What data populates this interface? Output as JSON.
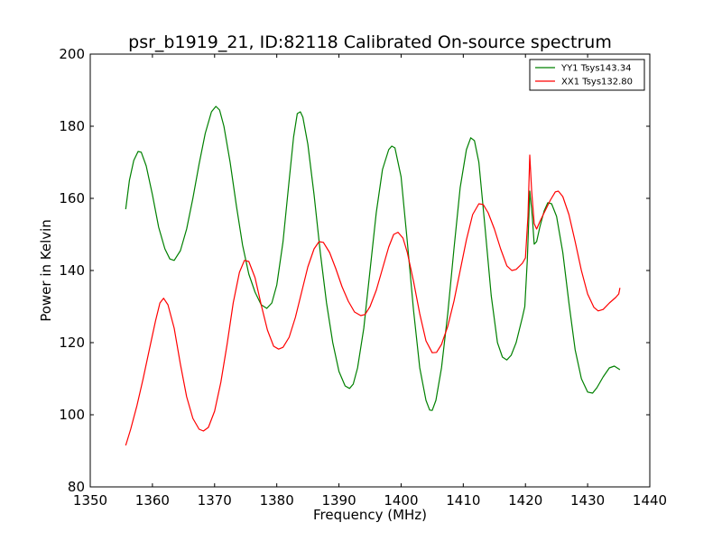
{
  "chart_data": {
    "type": "line",
    "title": "psr_b1919_21, ID:82118 Calibrated On-source spectrum",
    "xlabel": "Frequency (MHz)",
    "ylabel": "Power in Kelvin",
    "xlim": [
      1350,
      1440
    ],
    "ylim": [
      80,
      200
    ],
    "xticks": [
      1350,
      1360,
      1370,
      1380,
      1390,
      1400,
      1410,
      1420,
      1430,
      1440
    ],
    "yticks": [
      80,
      100,
      120,
      140,
      160,
      180,
      200
    ],
    "grid": false,
    "legend_position": "top-right",
    "series": [
      {
        "name": "YY1 Tsys143.34",
        "color": "#008000",
        "points": [
          [
            1355.7,
            157
          ],
          [
            1356.3,
            165
          ],
          [
            1357,
            170.5
          ],
          [
            1357.7,
            173
          ],
          [
            1358.2,
            172.8
          ],
          [
            1359,
            169
          ],
          [
            1360,
            161
          ],
          [
            1361,
            152
          ],
          [
            1362,
            146
          ],
          [
            1362.8,
            143.2
          ],
          [
            1363.5,
            142.8
          ],
          [
            1364.5,
            145.5
          ],
          [
            1365.5,
            151.5
          ],
          [
            1366.5,
            160
          ],
          [
            1367.5,
            169.5
          ],
          [
            1368.5,
            178
          ],
          [
            1369.5,
            184
          ],
          [
            1370.2,
            185.5
          ],
          [
            1370.8,
            184.5
          ],
          [
            1371.5,
            180
          ],
          [
            1372.5,
            170
          ],
          [
            1373.5,
            158
          ],
          [
            1374.5,
            147
          ],
          [
            1375.5,
            139
          ],
          [
            1376.5,
            134
          ],
          [
            1377.5,
            130.5
          ],
          [
            1378.4,
            129.5
          ],
          [
            1379.2,
            131
          ],
          [
            1380,
            136
          ],
          [
            1381,
            148
          ],
          [
            1382,
            165
          ],
          [
            1382.7,
            177
          ],
          [
            1383.3,
            183.5
          ],
          [
            1383.8,
            184
          ],
          [
            1384.2,
            182.5
          ],
          [
            1385,
            175
          ],
          [
            1386,
            161
          ],
          [
            1387,
            145
          ],
          [
            1388,
            131
          ],
          [
            1389,
            120
          ],
          [
            1390,
            112
          ],
          [
            1391,
            108
          ],
          [
            1391.7,
            107.3
          ],
          [
            1392.3,
            108.5
          ],
          [
            1393,
            113
          ],
          [
            1394,
            124
          ],
          [
            1395,
            140
          ],
          [
            1396,
            156
          ],
          [
            1397,
            168
          ],
          [
            1398,
            173.5
          ],
          [
            1398.5,
            174.5
          ],
          [
            1399,
            174
          ],
          [
            1400,
            166
          ],
          [
            1401,
            148
          ],
          [
            1402,
            129
          ],
          [
            1403,
            113
          ],
          [
            1404,
            104
          ],
          [
            1404.6,
            101.3
          ],
          [
            1405,
            101.2
          ],
          [
            1405.6,
            104
          ],
          [
            1406.5,
            113
          ],
          [
            1407.5,
            128
          ],
          [
            1408.5,
            146
          ],
          [
            1409.5,
            163
          ],
          [
            1410.5,
            173.5
          ],
          [
            1411.2,
            176.8
          ],
          [
            1411.8,
            176
          ],
          [
            1412.5,
            170
          ],
          [
            1413.5,
            152
          ],
          [
            1414.5,
            133
          ],
          [
            1415.5,
            120
          ],
          [
            1416.3,
            116
          ],
          [
            1417,
            115.2
          ],
          [
            1417.7,
            116.5
          ],
          [
            1418.5,
            120
          ],
          [
            1419.5,
            127
          ],
          [
            1419.9,
            130
          ],
          [
            1420.3,
            143
          ],
          [
            1420.7,
            162
          ],
          [
            1421.1,
            155
          ],
          [
            1421.4,
            147.3
          ],
          [
            1421.8,
            148
          ],
          [
            1422.3,
            152
          ],
          [
            1423,
            156.5
          ],
          [
            1423.6,
            158.8
          ],
          [
            1424.2,
            158.5
          ],
          [
            1425,
            155
          ],
          [
            1426,
            145
          ],
          [
            1427,
            131
          ],
          [
            1428,
            118
          ],
          [
            1429,
            110
          ],
          [
            1430,
            106.3
          ],
          [
            1430.8,
            106
          ],
          [
            1431.5,
            107.5
          ],
          [
            1432.5,
            110.5
          ],
          [
            1433.5,
            113
          ],
          [
            1434.3,
            113.5
          ],
          [
            1435.2,
            112.5
          ]
        ]
      },
      {
        "name": "XX1 Tsys132.80",
        "color": "#ff0000",
        "points": [
          [
            1355.7,
            91.5
          ],
          [
            1356.5,
            96
          ],
          [
            1357.5,
            102.5
          ],
          [
            1358.5,
            110
          ],
          [
            1359.5,
            118
          ],
          [
            1360.5,
            126
          ],
          [
            1361.2,
            131
          ],
          [
            1361.8,
            132.3
          ],
          [
            1362.5,
            130.5
          ],
          [
            1363.5,
            124
          ],
          [
            1364.5,
            114
          ],
          [
            1365.5,
            105
          ],
          [
            1366.5,
            99
          ],
          [
            1367.5,
            96
          ],
          [
            1368.2,
            95.5
          ],
          [
            1369,
            96.5
          ],
          [
            1370,
            101
          ],
          [
            1371,
            109
          ],
          [
            1372,
            119.5
          ],
          [
            1373,
            131
          ],
          [
            1374,
            139.5
          ],
          [
            1374.8,
            142.8
          ],
          [
            1375.5,
            142.5
          ],
          [
            1376.5,
            138
          ],
          [
            1377.5,
            130.5
          ],
          [
            1378.5,
            123.5
          ],
          [
            1379.5,
            119
          ],
          [
            1380.3,
            118.2
          ],
          [
            1381,
            118.7
          ],
          [
            1382,
            121.5
          ],
          [
            1383,
            127
          ],
          [
            1384,
            134
          ],
          [
            1385,
            141
          ],
          [
            1386,
            146
          ],
          [
            1386.8,
            148
          ],
          [
            1387.5,
            147.8
          ],
          [
            1388.5,
            145
          ],
          [
            1389.5,
            140.5
          ],
          [
            1390.5,
            135.5
          ],
          [
            1391.5,
            131.5
          ],
          [
            1392.5,
            128.5
          ],
          [
            1393.5,
            127.5
          ],
          [
            1394.2,
            127.8
          ],
          [
            1395,
            130
          ],
          [
            1396,
            134.5
          ],
          [
            1397,
            140.5
          ],
          [
            1398,
            146.5
          ],
          [
            1398.8,
            150
          ],
          [
            1399.5,
            150.6
          ],
          [
            1400.3,
            149
          ],
          [
            1401,
            145
          ],
          [
            1402,
            137
          ],
          [
            1403,
            128
          ],
          [
            1404,
            120.5
          ],
          [
            1405,
            117.2
          ],
          [
            1405.7,
            117.3
          ],
          [
            1406.5,
            119.5
          ],
          [
            1407.5,
            124.5
          ],
          [
            1408.5,
            131.5
          ],
          [
            1409.5,
            140
          ],
          [
            1410.5,
            148.5
          ],
          [
            1411.5,
            155.5
          ],
          [
            1412.5,
            158.5
          ],
          [
            1413.2,
            158.3
          ],
          [
            1414,
            156
          ],
          [
            1415,
            151.5
          ],
          [
            1416,
            146
          ],
          [
            1417,
            141.3
          ],
          [
            1417.8,
            140
          ],
          [
            1418.5,
            140.3
          ],
          [
            1419.5,
            142
          ],
          [
            1420,
            143.5
          ],
          [
            1420.4,
            155
          ],
          [
            1420.7,
            172
          ],
          [
            1421,
            162
          ],
          [
            1421.4,
            153
          ],
          [
            1421.8,
            151.5
          ],
          [
            1422.3,
            153.5
          ],
          [
            1423,
            156
          ],
          [
            1424,
            159.5
          ],
          [
            1424.8,
            161.8
          ],
          [
            1425.3,
            162
          ],
          [
            1426,
            160.5
          ],
          [
            1427,
            155.5
          ],
          [
            1428,
            148
          ],
          [
            1429,
            140
          ],
          [
            1430,
            133.5
          ],
          [
            1431,
            129.8
          ],
          [
            1431.7,
            128.8
          ],
          [
            1432.5,
            129.2
          ],
          [
            1433.5,
            131
          ],
          [
            1434.5,
            132.5
          ],
          [
            1435,
            133.5
          ],
          [
            1435.2,
            135.2
          ]
        ]
      }
    ]
  }
}
